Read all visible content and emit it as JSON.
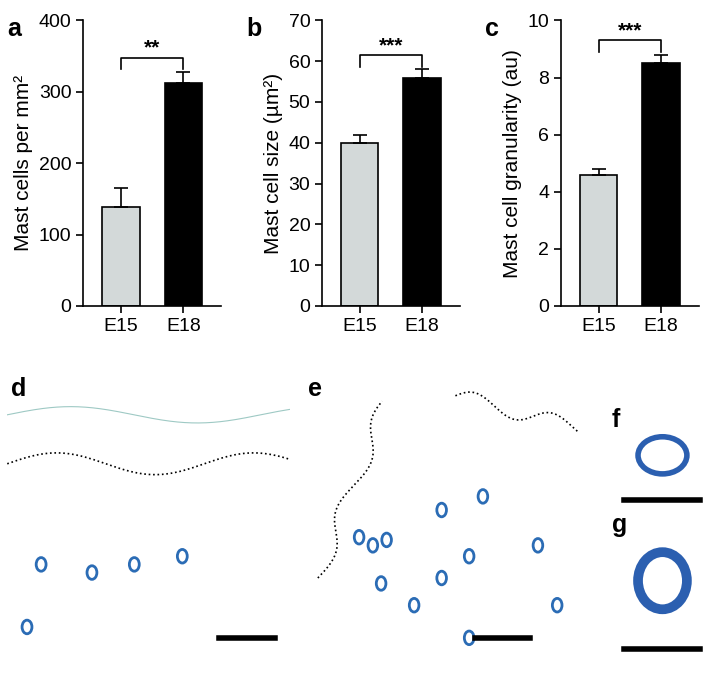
{
  "chart_data": [
    {
      "type": "bar",
      "label": "a",
      "ylabel": "Mast cells per mm²",
      "categories": [
        "E15",
        "E18"
      ],
      "values": [
        138,
        313
      ],
      "errors": [
        27,
        15
      ],
      "colors": [
        "#d3d9d9",
        "#000000"
      ],
      "ylim": [
        0,
        400
      ],
      "yticks": [
        0,
        100,
        200,
        300,
        400
      ],
      "significance": "**"
    },
    {
      "type": "bar",
      "label": "b",
      "ylabel": "Mast cell size (µm²)",
      "categories": [
        "E15",
        "E18"
      ],
      "values": [
        40,
        56
      ],
      "errors": [
        2,
        2
      ],
      "colors": [
        "#d3d9d9",
        "#000000"
      ],
      "ylim": [
        0,
        70
      ],
      "yticks": [
        0,
        10,
        20,
        30,
        40,
        50,
        60,
        70
      ],
      "significance": "***"
    },
    {
      "type": "bar",
      "label": "c",
      "ylabel": "Mast cell granularity (au)",
      "categories": [
        "E15",
        "E18"
      ],
      "values": [
        4.6,
        8.5
      ],
      "errors": [
        0.2,
        0.3
      ],
      "colors": [
        "#d3d9d9",
        "#000000"
      ],
      "ylim": [
        0,
        10
      ],
      "yticks": [
        0,
        2,
        4,
        6,
        8,
        10
      ],
      "significance": "***"
    }
  ],
  "image_panels": [
    {
      "label": "d"
    },
    {
      "label": "e"
    },
    {
      "label": "f"
    },
    {
      "label": "g"
    }
  ]
}
